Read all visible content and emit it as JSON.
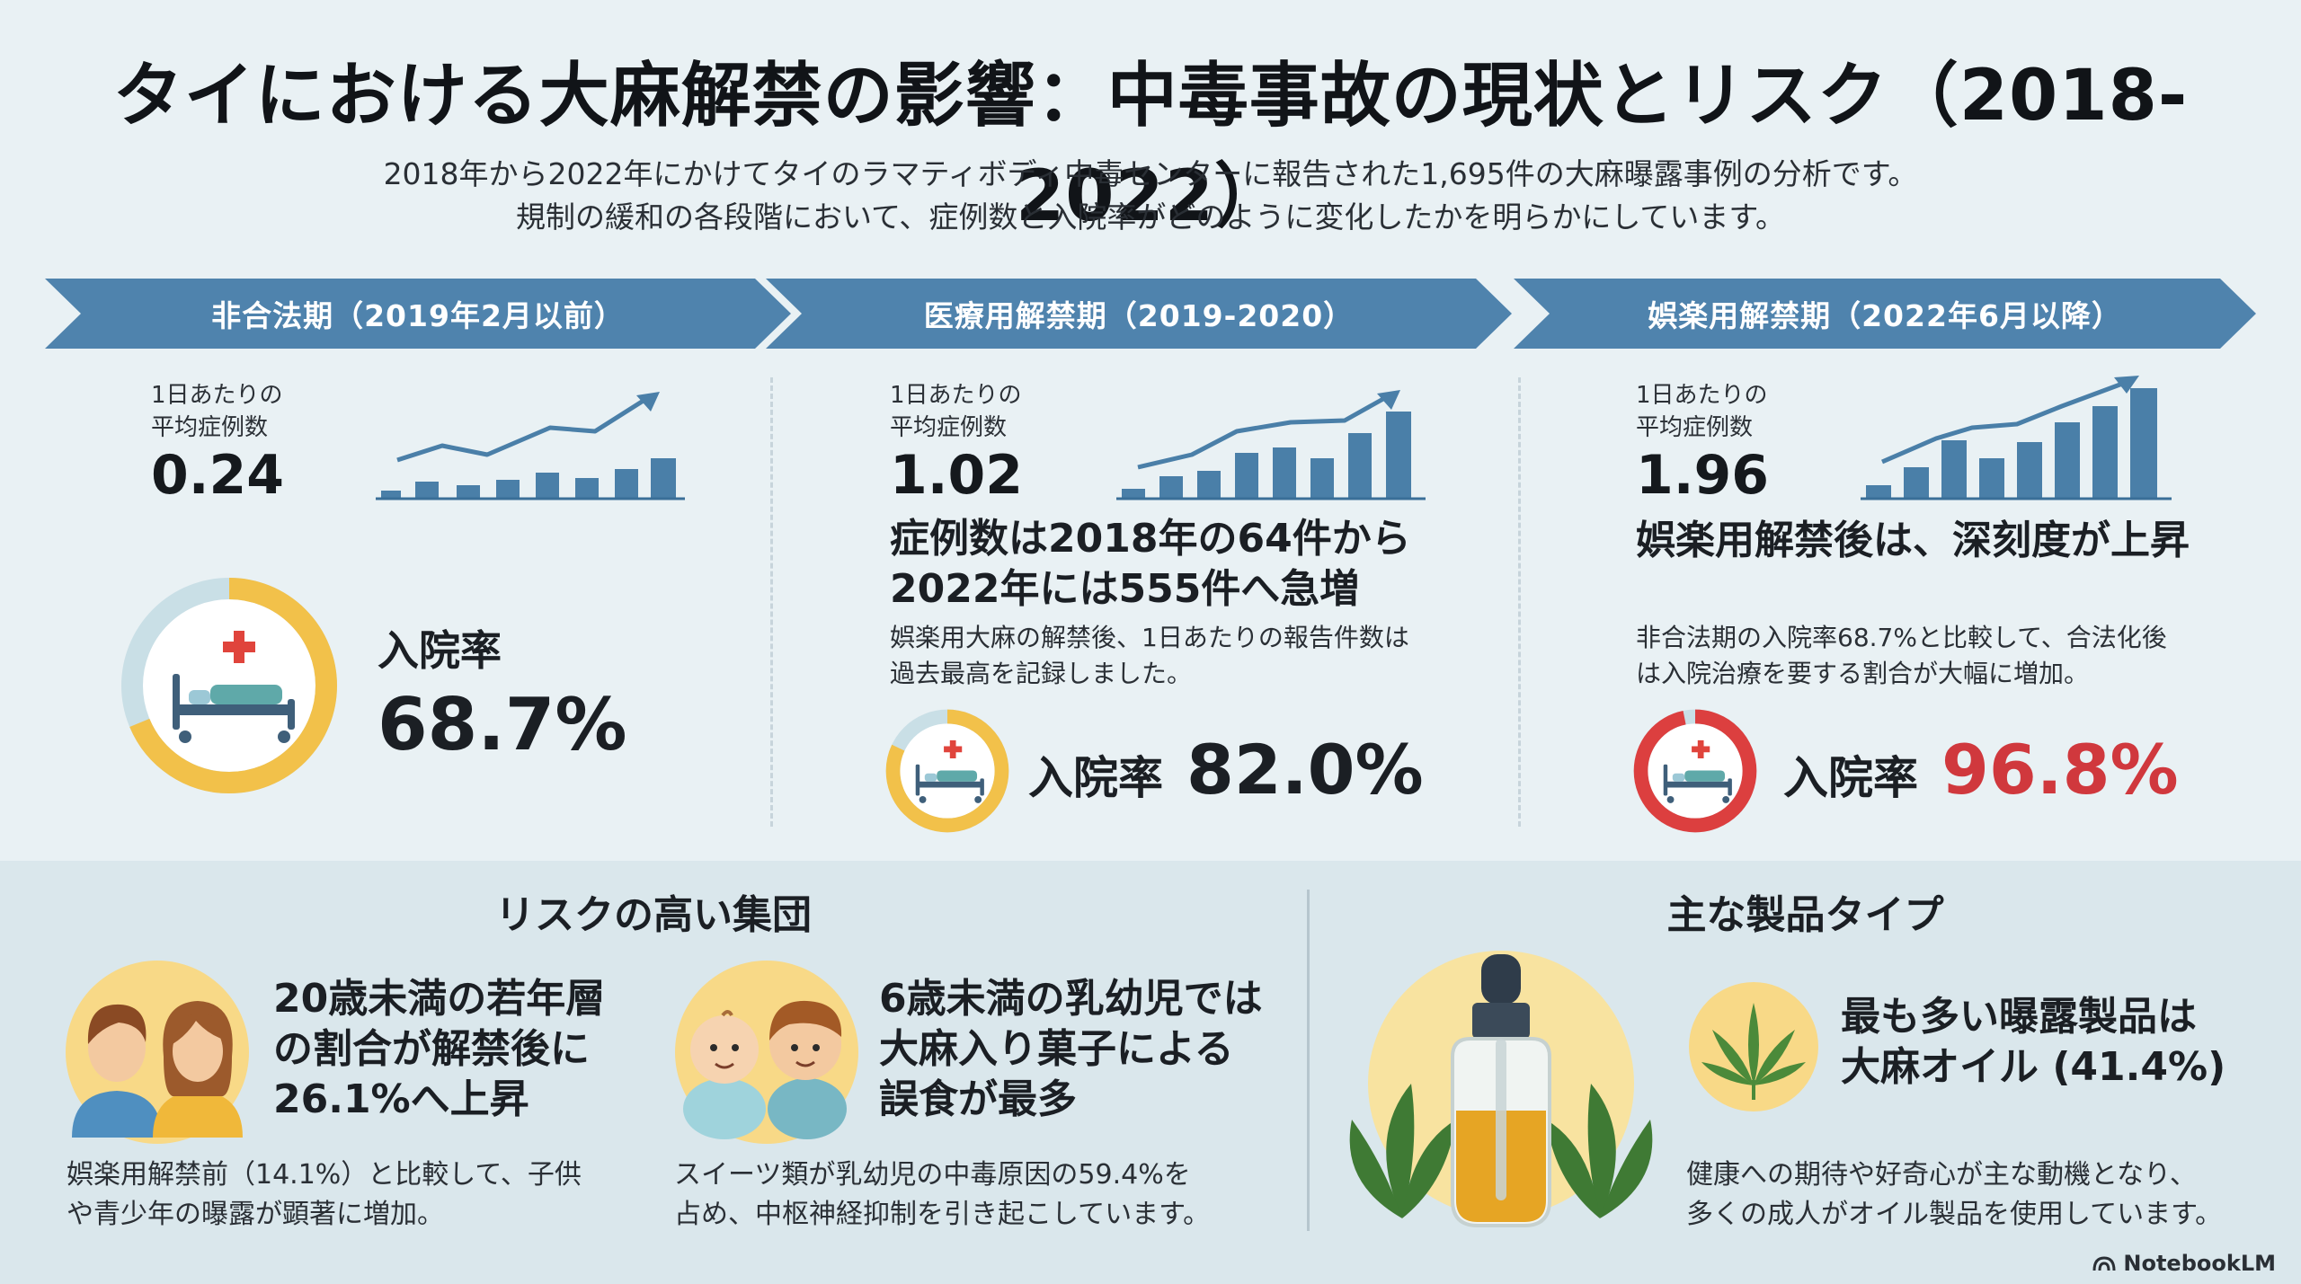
{
  "title": "タイにおける大麻解禁の影響：中毒事故の現状とリスク（2018-2022）",
  "intro": {
    "line1": "2018年から2022年にかけてタイのラマティボディ中毒センターに報告された1,695件の大麻曝露事例の分析です。",
    "line2": "規制の緩和の各段階において、症例数と入院率がどのように変化したかを明らかにしています。"
  },
  "periods": [
    {
      "banner": "非合法期（2019年2月以前）",
      "stat_label_1": "1日あたりの",
      "stat_label_2": "平均症例数",
      "stat_value": "0.24",
      "hosp_label": "入院率",
      "hosp_value": "68.7%",
      "hosp_rate": 0.687,
      "ring_color": "#f2c14a",
      "value_color": "#1b1f24"
    },
    {
      "banner": "医療用解禁期（2019-2020）",
      "stat_label_1": "1日あたりの",
      "stat_label_2": "平均症例数",
      "stat_value": "1.02",
      "headline_1": "症例数は2018年の64件から",
      "headline_2": "2022年には555件へ急増",
      "body_1": "娯楽用大麻の解禁後、1日あたりの報告件数は",
      "body_2": "過去最高を記録しました。",
      "hosp_label": "入院率",
      "hosp_value": "82.0%",
      "hosp_rate": 0.82,
      "ring_color": "#f2c14a",
      "value_color": "#1b1f24"
    },
    {
      "banner": "娯楽用解禁期（2022年6月以降）",
      "stat_label_1": "1日あたりの",
      "stat_label_2": "平均症例数",
      "stat_value": "1.96",
      "headline_1": "娯楽用解禁後は、深刻度が上昇",
      "body_1": "非合法期の入院率68.7%と比較して、合法化後",
      "body_2": "は入院治療を要する割合が大幅に増加。",
      "hosp_label": "入院率",
      "hosp_value": "96.8%",
      "hosp_rate": 0.968,
      "ring_color": "#dc3f3f",
      "value_color": "#d0383d"
    }
  ],
  "risk": {
    "title": "リスクの高い集団",
    "groups": [
      {
        "head_1": "20歳未満の若年層",
        "head_2": "の割合が解禁後に",
        "head_3": "26.1%へ上昇",
        "body_1": "娯楽用解禁前（14.1%）と比較して、子供",
        "body_2": "や青少年の曝露が顕著に増加。"
      },
      {
        "head_1": "6歳未満の乳幼児では",
        "head_2": "大麻入り菓子による",
        "head_3": "誤食が最多",
        "body_1": "スイーツ類が乳幼児の中毒原因の59.4%を",
        "body_2": "占め、中枢神経抑制を引き起こしています。"
      }
    ]
  },
  "products": {
    "title": "主な製品タイプ",
    "head_1": "最も多い曝露製品は",
    "head_2": "大麻オイル (41.4%)",
    "body_1": "健康への期待や好奇心が主な動機となり、",
    "body_2": "多くの成人がオイル製品を使用しています。"
  },
  "footer": {
    "brand": "NotebookLM"
  },
  "colors": {
    "banner": "#4f83ad",
    "bar": "#4a7fa8",
    "ring_yellow": "#f2c14a",
    "ring_red": "#dc3f3f",
    "ring_track": "#c9dfe6",
    "highlight_red": "#d0383d"
  }
}
